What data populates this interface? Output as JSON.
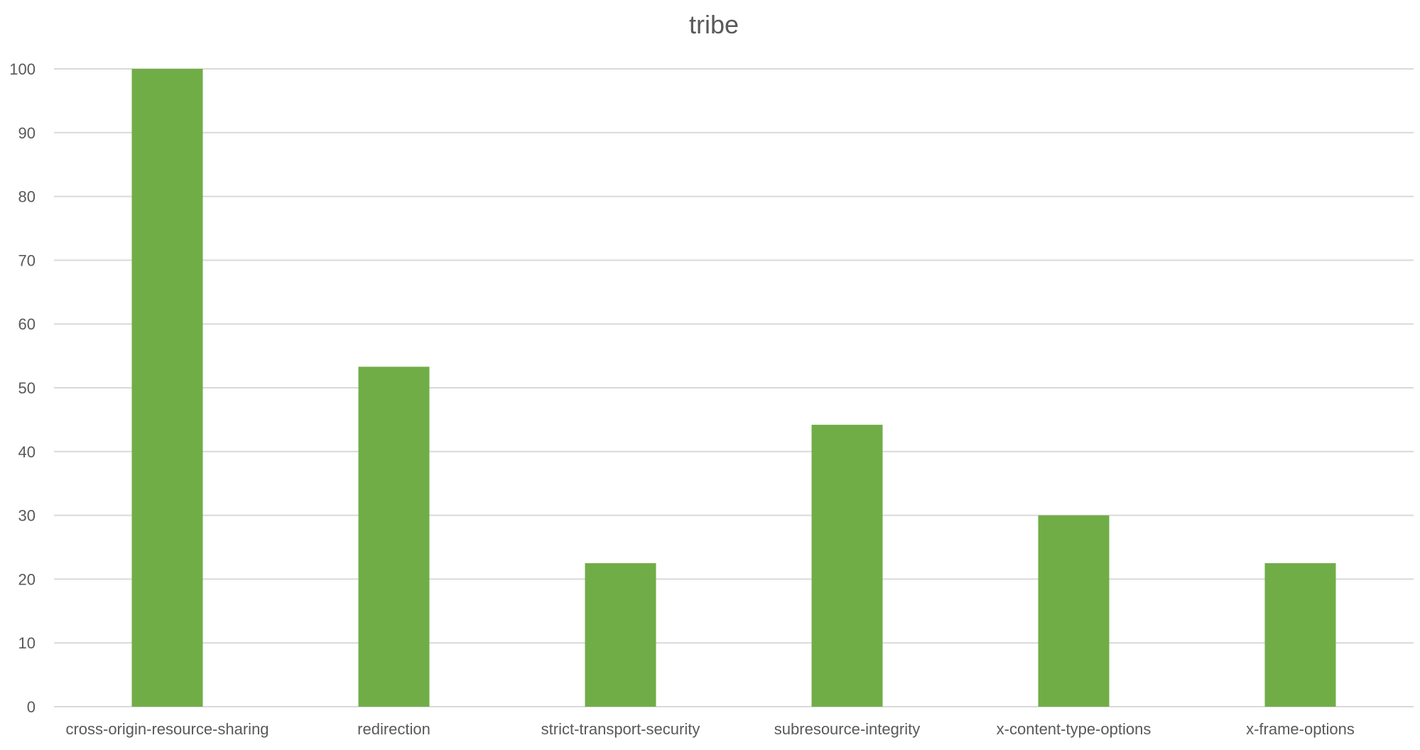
{
  "chart_data": {
    "type": "bar",
    "title": "tribe",
    "xlabel": "",
    "ylabel": "",
    "categories": [
      "cross-origin-resource-sharing",
      "redirection",
      "strict-transport-security",
      "subresource-integrity",
      "x-content-type-options",
      "x-frame-options"
    ],
    "values": [
      100,
      53.3,
      22.5,
      44.2,
      30,
      22.5
    ],
    "ylim": [
      0,
      100
    ],
    "yticks": [
      0,
      10,
      20,
      30,
      40,
      50,
      60,
      70,
      80,
      90,
      100
    ],
    "grid": true,
    "legend": "none",
    "bar_color": "#70ad47",
    "grid_color": "#d9d9d9",
    "text_color": "#595959"
  }
}
